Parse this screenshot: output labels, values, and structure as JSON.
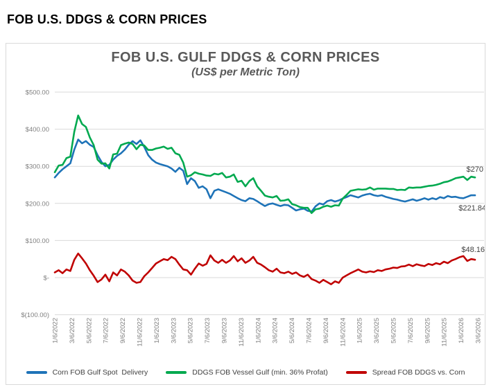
{
  "page": {
    "title": "FOB U.S. DDGS & CORN PRICES"
  },
  "chart": {
    "title": "FOB U.S. GULF DDGS & CORN PRICES",
    "subtitle": "(US$ per Metric Ton)"
  },
  "chart_data": {
    "type": "line",
    "title": "FOB U.S. GULF DDGS & CORN PRICES",
    "subtitle": "(US$ per Metric Ton)",
    "ylabel": "US$ per Metric Ton",
    "ylim": [
      -100,
      500
    ],
    "grid": "horizontal",
    "legend_position": "bottom",
    "ytick_values": [
      500,
      400,
      300,
      200,
      100,
      0,
      -100
    ],
    "ytick_labels": [
      "$500.00",
      "$400.00",
      "$300.00",
      "$200.00",
      "$100.00",
      "$-",
      "$(100.00)"
    ],
    "xtick_labels": [
      "1/6/2022",
      "3/6/2022",
      "5/6/2022",
      "7/6/2022",
      "9/6/2022",
      "11/6/2022",
      "1/6/2023",
      "3/6/2023",
      "5/6/2023",
      "7/6/2023",
      "9/6/2023",
      "11/6/2023",
      "1/6/2024",
      "3/6/2024",
      "5/6/2024",
      "7/6/2024",
      "9/6/2024",
      "11/6/2024",
      "1/6/2025",
      "3/6/2025",
      "5/6/2025",
      "7/6/2025",
      "9/6/2025",
      "11/6/2025",
      "1/6/2026",
      "3/6/2026"
    ],
    "x_interval": "biweekly prices, Jan 2022 - Mar 2026",
    "series": [
      {
        "id": "corn",
        "name": "Corn FOB Gulf Spot  Delivery",
        "color": "#1e73b8",
        "end_label": "$221.84",
        "end_value": 221.84,
        "values": [
          270,
          282,
          292,
          300,
          308,
          345,
          372,
          362,
          368,
          358,
          352,
          330,
          312,
          300,
          304,
          318,
          328,
          335,
          345,
          358,
          368,
          360,
          370,
          352,
          330,
          318,
          310,
          306,
          303,
          300,
          294,
          285,
          296,
          288,
          252,
          268,
          260,
          242,
          246,
          238,
          214,
          234,
          238,
          234,
          230,
          226,
          220,
          214,
          209,
          206,
          214,
          212,
          206,
          199,
          193,
          198,
          200,
          196,
          193,
          196,
          195,
          188,
          181,
          184,
          186,
          180,
          178,
          192,
          200,
          197,
          206,
          209,
          205,
          208,
          213,
          217,
          222,
          219,
          216,
          221,
          224,
          226,
          222,
          220,
          222,
          218,
          215,
          212,
          210,
          207,
          205,
          208,
          211,
          207,
          210,
          214,
          210,
          214,
          211,
          217,
          214,
          220,
          217,
          218,
          215,
          214,
          218,
          222,
          221.84
        ]
      },
      {
        "id": "ddgs",
        "name": "DDGS FOB Vessel Gulf (min. 36% Profat)",
        "color": "#00a94f",
        "end_label": "$270",
        "end_value": 270,
        "values": [
          284,
          302,
          304,
          322,
          326,
          393,
          437,
          414,
          406,
          378,
          357,
          318,
          307,
          308,
          294,
          332,
          334,
          357,
          361,
          364,
          360,
          346,
          358,
          356,
          344,
          344,
          348,
          350,
          353,
          347,
          350,
          335,
          331,
          310,
          272,
          276,
          284,
          280,
          278,
          275,
          274,
          280,
          278,
          282,
          270,
          272,
          278,
          258,
          261,
          246,
          260,
          268,
          246,
          234,
          221,
          218,
          216,
          220,
          207,
          208,
          211,
          198,
          195,
          190,
          188,
          188,
          174,
          184,
          186,
          191,
          194,
          191,
          195,
          194,
          213,
          223,
          234,
          236,
          238,
          237,
          238,
          243,
          237,
          240,
          240,
          240,
          239,
          239,
          236,
          237,
          236,
          243,
          242,
          243,
          243,
          245,
          247,
          248,
          250,
          253,
          257,
          259,
          263,
          268,
          270,
          272,
          263,
          272,
          270
        ]
      },
      {
        "id": "spread",
        "name": "Spread FOB DDGS vs. Corn",
        "color": "#c00000",
        "end_label": "$48.16",
        "end_value": 48.16,
        "values": [
          14,
          20,
          12,
          22,
          18,
          48,
          65,
          52,
          38,
          20,
          5,
          -12,
          -5,
          8,
          -10,
          14,
          6,
          22,
          16,
          6,
          -8,
          -14,
          -12,
          4,
          14,
          26,
          38,
          44,
          50,
          47,
          56,
          50,
          35,
          22,
          20,
          8,
          24,
          38,
          32,
          37,
          60,
          46,
          40,
          48,
          40,
          46,
          58,
          44,
          52,
          40,
          46,
          56,
          40,
          35,
          28,
          20,
          16,
          24,
          14,
          12,
          16,
          10,
          14,
          6,
          2,
          8,
          -4,
          -8,
          -14,
          -6,
          -12,
          -18,
          -10,
          -14,
          0,
          6,
          12,
          17,
          22,
          16,
          14,
          17,
          15,
          20,
          18,
          22,
          24,
          27,
          26,
          30,
          31,
          35,
          31,
          36,
          33,
          31,
          37,
          34,
          39,
          36,
          43,
          39,
          46,
          50,
          55,
          58,
          45,
          50,
          48.16
        ]
      }
    ]
  }
}
